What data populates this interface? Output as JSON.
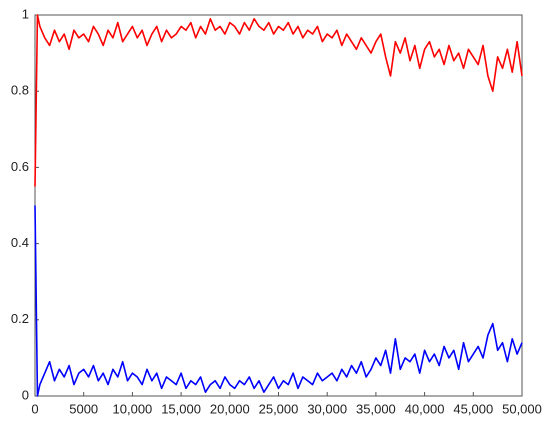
{
  "chart_data": {
    "type": "line",
    "x": [
      0,
      250,
      500,
      1000,
      1500,
      2000,
      2500,
      3000,
      3500,
      4000,
      4500,
      5000,
      5500,
      6000,
      6500,
      7000,
      7500,
      8000,
      8500,
      9000,
      9500,
      10000,
      10500,
      11000,
      11500,
      12000,
      12500,
      13000,
      13500,
      14000,
      14500,
      15000,
      15500,
      16000,
      16500,
      17000,
      17500,
      18000,
      18500,
      19000,
      19500,
      20000,
      20500,
      21000,
      21500,
      22000,
      22500,
      23000,
      23500,
      24000,
      24500,
      25000,
      25500,
      26000,
      26500,
      27000,
      27500,
      28000,
      28500,
      29000,
      29500,
      30000,
      30500,
      31000,
      31500,
      32000,
      32500,
      33000,
      33500,
      34000,
      34500,
      35000,
      35500,
      36000,
      36500,
      37000,
      37500,
      38000,
      38500,
      39000,
      39500,
      40000,
      40500,
      41000,
      41500,
      42000,
      42500,
      43000,
      43500,
      44000,
      44500,
      45000,
      45500,
      46000,
      46500,
      47000,
      47500,
      48000,
      48500,
      49000,
      49500,
      50000
    ],
    "series": [
      {
        "color": "#ff0000",
        "values": [
          0.55,
          1.0,
          0.97,
          0.94,
          0.92,
          0.96,
          0.93,
          0.95,
          0.91,
          0.96,
          0.94,
          0.95,
          0.93,
          0.97,
          0.95,
          0.92,
          0.96,
          0.94,
          0.98,
          0.93,
          0.95,
          0.97,
          0.94,
          0.96,
          0.92,
          0.95,
          0.97,
          0.93,
          0.96,
          0.94,
          0.95,
          0.97,
          0.96,
          0.98,
          0.94,
          0.97,
          0.95,
          0.99,
          0.96,
          0.97,
          0.95,
          0.98,
          0.97,
          0.95,
          0.98,
          0.96,
          0.99,
          0.97,
          0.96,
          0.98,
          0.95,
          0.97,
          0.96,
          0.98,
          0.95,
          0.97,
          0.94,
          0.96,
          0.95,
          0.97,
          0.93,
          0.95,
          0.94,
          0.96,
          0.92,
          0.95,
          0.93,
          0.91,
          0.94,
          0.92,
          0.9,
          0.93,
          0.95,
          0.89,
          0.84,
          0.93,
          0.9,
          0.94,
          0.88,
          0.92,
          0.86,
          0.91,
          0.93,
          0.89,
          0.91,
          0.87,
          0.92,
          0.88,
          0.9,
          0.86,
          0.91,
          0.89,
          0.87,
          0.92,
          0.84,
          0.8,
          0.89,
          0.86,
          0.91,
          0.85,
          0.93,
          0.84
        ]
      },
      {
        "color": "#0000ff",
        "values": [
          0.5,
          0.0,
          0.03,
          0.06,
          0.09,
          0.04,
          0.07,
          0.05,
          0.08,
          0.03,
          0.06,
          0.07,
          0.05,
          0.08,
          0.04,
          0.06,
          0.03,
          0.07,
          0.05,
          0.09,
          0.04,
          0.06,
          0.05,
          0.03,
          0.07,
          0.04,
          0.06,
          0.02,
          0.05,
          0.04,
          0.03,
          0.06,
          0.02,
          0.04,
          0.03,
          0.05,
          0.01,
          0.03,
          0.04,
          0.02,
          0.05,
          0.03,
          0.02,
          0.04,
          0.03,
          0.05,
          0.02,
          0.04,
          0.01,
          0.03,
          0.05,
          0.02,
          0.04,
          0.03,
          0.06,
          0.02,
          0.05,
          0.04,
          0.03,
          0.06,
          0.04,
          0.05,
          0.06,
          0.04,
          0.07,
          0.05,
          0.08,
          0.06,
          0.09,
          0.05,
          0.07,
          0.1,
          0.08,
          0.12,
          0.06,
          0.15,
          0.07,
          0.1,
          0.09,
          0.11,
          0.06,
          0.12,
          0.09,
          0.11,
          0.08,
          0.13,
          0.1,
          0.12,
          0.07,
          0.14,
          0.09,
          0.11,
          0.13,
          0.1,
          0.16,
          0.19,
          0.12,
          0.14,
          0.09,
          0.15,
          0.11,
          0.14
        ]
      }
    ],
    "xlim": [
      0,
      50000
    ],
    "ylim": [
      0,
      1
    ],
    "xticks": [
      0,
      5000,
      {
        "value": 10000,
        "label": "10,000"
      },
      {
        "value": 15000,
        "label": "15,000"
      },
      {
        "value": 20000,
        "label": "20,000"
      },
      {
        "value": 25000,
        "label": "25,000"
      },
      {
        "value": 30000,
        "label": "30,000"
      },
      {
        "value": 35000,
        "label": "35,000"
      },
      {
        "value": 40000,
        "label": "40,000"
      },
      {
        "value": 45000,
        "label": "45,000"
      },
      {
        "value": 50000,
        "label": "50,000"
      }
    ],
    "yticks": [
      0,
      0.2,
      0.4,
      0.6,
      0.8,
      1
    ]
  }
}
